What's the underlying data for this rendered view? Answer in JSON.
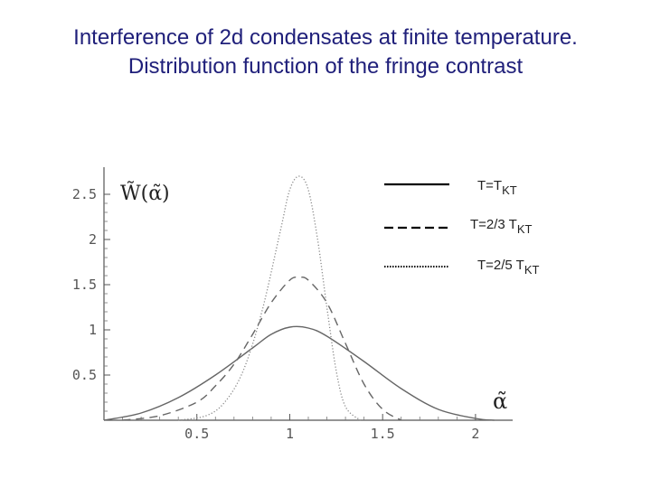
{
  "title_line1": "Interference of 2d condensates at finite temperature.",
  "title_line2": "Distribution function of the fringe contrast",
  "chart_data": {
    "type": "line",
    "xlabel": "α̃",
    "ylabel": "W̃(α̃)",
    "xlim": [
      0,
      2.2
    ],
    "ylim": [
      0,
      2.75
    ],
    "x_ticks": [
      "0.5",
      "1",
      "1.5",
      "2"
    ],
    "y_ticks": [
      "0.5",
      "1",
      "1.5",
      "2",
      "2.5"
    ],
    "series": [
      {
        "name": "T=T",
        "subscript": "KT",
        "style": "solid",
        "color": "#666666",
        "x": [
          0.0,
          0.2,
          0.4,
          0.6,
          0.8,
          0.9,
          1.0,
          1.1,
          1.2,
          1.4,
          1.6,
          1.8,
          2.0,
          2.1
        ],
        "y": [
          0.0,
          0.08,
          0.25,
          0.5,
          0.8,
          0.95,
          1.03,
          1.02,
          0.93,
          0.65,
          0.35,
          0.12,
          0.02,
          0.0
        ]
      },
      {
        "name": "T=2/3 T",
        "subscript": "KT",
        "style": "dashed",
        "color": "#666666",
        "x": [
          0.1,
          0.3,
          0.5,
          0.6,
          0.7,
          0.8,
          0.9,
          1.0,
          1.05,
          1.1,
          1.2,
          1.3,
          1.4,
          1.5,
          1.6
        ],
        "y": [
          0.0,
          0.05,
          0.2,
          0.38,
          0.62,
          0.95,
          1.3,
          1.55,
          1.58,
          1.55,
          1.3,
          0.85,
          0.4,
          0.12,
          0.0
        ]
      },
      {
        "name": "T=2/5 T",
        "subscript": "KT",
        "style": "dotted",
        "color": "#888888",
        "x": [
          0.4,
          0.55,
          0.65,
          0.75,
          0.85,
          0.95,
          1.0,
          1.05,
          1.1,
          1.15,
          1.2,
          1.25,
          1.3,
          1.38
        ],
        "y": [
          0.0,
          0.05,
          0.2,
          0.55,
          1.2,
          2.1,
          2.55,
          2.7,
          2.55,
          2.0,
          1.25,
          0.55,
          0.15,
          0.0
        ]
      }
    ],
    "legend_position": "top-right"
  }
}
